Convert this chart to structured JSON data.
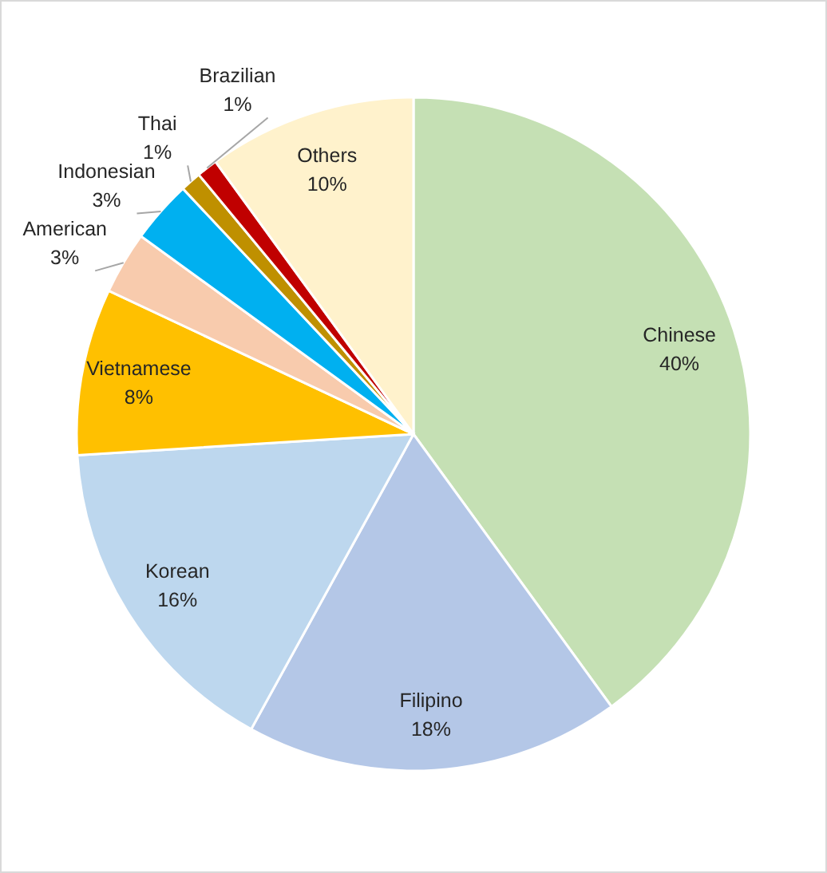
{
  "chart_data": {
    "type": "pie",
    "categories": [
      "Chinese",
      "Filipino",
      "Korean",
      "Vietnamese",
      "American",
      "Indonesian",
      "Thai",
      "Brazilian",
      "Others"
    ],
    "values": [
      40,
      18,
      16,
      8,
      3,
      3,
      1,
      1,
      10
    ],
    "colors": [
      "#c5e0b4",
      "#b4c7e7",
      "#bdd7ee",
      "#ffc000",
      "#f8cbad",
      "#00b0f0",
      "#bf9000",
      "#c00000",
      "#fff2cc"
    ],
    "value_labels": [
      "40%",
      "18%",
      "16%",
      "8%",
      "3%",
      "3%",
      "1%",
      "1%",
      "10%"
    ]
  }
}
